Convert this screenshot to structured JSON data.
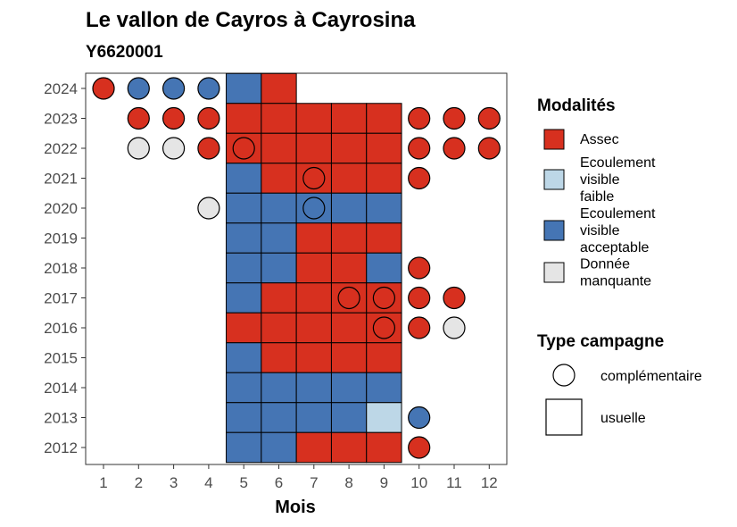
{
  "title": "Le vallon de Cayros à Cayrosina",
  "subtitle": "Y6620001",
  "colors": {
    "assec": "#d7301f",
    "faible": "#bdd7e7",
    "acceptable": "#4575b4",
    "manquante": "#e5e5e5"
  },
  "legend": {
    "modalites_title": "Modalités",
    "modalites": [
      {
        "key": "assec",
        "lines": [
          "Assec"
        ]
      },
      {
        "key": "faible",
        "lines": [
          "Ecoulement",
          "visible",
          "faible"
        ]
      },
      {
        "key": "acceptable",
        "lines": [
          "Ecoulement",
          "visible",
          "acceptable"
        ]
      },
      {
        "key": "manquante",
        "lines": [
          "Donnée",
          "manquante"
        ]
      }
    ],
    "campagne_title": "Type campagne",
    "campagnes": [
      {
        "shape": "circle",
        "label": "complémentaire"
      },
      {
        "shape": "square",
        "label": "usuelle"
      }
    ]
  },
  "chart_data": {
    "type": "heatmap",
    "title": "Le vallon de Cayros à Cayrosina",
    "subtitle": "Y6620001",
    "xlabel": "Mois",
    "ylabel": "",
    "x_ticks": [
      1,
      2,
      3,
      4,
      5,
      6,
      7,
      8,
      9,
      10,
      11,
      12
    ],
    "y_ticks": [
      2012,
      2013,
      2014,
      2015,
      2016,
      2017,
      2018,
      2019,
      2020,
      2021,
      2022,
      2023,
      2024
    ],
    "usuelle": [
      {
        "year": 2024,
        "values": {
          "5": "acceptable",
          "6": "assec"
        }
      },
      {
        "year": 2023,
        "values": {
          "5": "assec",
          "6": "assec",
          "7": "assec",
          "8": "assec",
          "9": "assec"
        }
      },
      {
        "year": 2022,
        "values": {
          "5": "assec",
          "6": "assec",
          "7": "assec",
          "8": "assec",
          "9": "assec"
        }
      },
      {
        "year": 2021,
        "values": {
          "5": "acceptable",
          "6": "assec",
          "7": "assec",
          "8": "assec",
          "9": "assec"
        }
      },
      {
        "year": 2020,
        "values": {
          "5": "acceptable",
          "6": "acceptable",
          "7": "acceptable",
          "8": "acceptable",
          "9": "acceptable"
        }
      },
      {
        "year": 2019,
        "values": {
          "5": "acceptable",
          "6": "acceptable",
          "7": "assec",
          "8": "assec",
          "9": "assec"
        }
      },
      {
        "year": 2018,
        "values": {
          "5": "acceptable",
          "6": "acceptable",
          "7": "assec",
          "8": "assec",
          "9": "acceptable"
        }
      },
      {
        "year": 2017,
        "values": {
          "5": "acceptable",
          "6": "assec",
          "7": "assec",
          "8": "assec",
          "9": "assec"
        }
      },
      {
        "year": 2016,
        "values": {
          "5": "assec",
          "6": "assec",
          "7": "assec",
          "8": "assec",
          "9": "assec"
        }
      },
      {
        "year": 2015,
        "values": {
          "5": "acceptable",
          "6": "assec",
          "7": "assec",
          "8": "assec",
          "9": "assec"
        }
      },
      {
        "year": 2014,
        "values": {
          "5": "acceptable",
          "6": "acceptable",
          "7": "acceptable",
          "8": "acceptable",
          "9": "acceptable"
        }
      },
      {
        "year": 2013,
        "values": {
          "5": "acceptable",
          "6": "acceptable",
          "7": "acceptable",
          "8": "acceptable",
          "9": "faible"
        }
      },
      {
        "year": 2012,
        "values": {
          "5": "acceptable",
          "6": "acceptable",
          "7": "assec",
          "8": "assec",
          "9": "assec"
        }
      }
    ],
    "complementaire": [
      {
        "year": 2024,
        "month": 1,
        "value": "assec"
      },
      {
        "year": 2024,
        "month": 2,
        "value": "acceptable"
      },
      {
        "year": 2024,
        "month": 3,
        "value": "acceptable"
      },
      {
        "year": 2024,
        "month": 4,
        "value": "acceptable"
      },
      {
        "year": 2023,
        "month": 2,
        "value": "assec"
      },
      {
        "year": 2023,
        "month": 3,
        "value": "assec"
      },
      {
        "year": 2023,
        "month": 4,
        "value": "assec"
      },
      {
        "year": 2023,
        "month": 10,
        "value": "assec"
      },
      {
        "year": 2023,
        "month": 11,
        "value": "assec"
      },
      {
        "year": 2023,
        "month": 12,
        "value": "assec"
      },
      {
        "year": 2022,
        "month": 2,
        "value": "manquante"
      },
      {
        "year": 2022,
        "month": 3,
        "value": "manquante"
      },
      {
        "year": 2022,
        "month": 4,
        "value": "assec"
      },
      {
        "year": 2022,
        "month": 5,
        "value": "assec"
      },
      {
        "year": 2022,
        "month": 10,
        "value": "assec"
      },
      {
        "year": 2022,
        "month": 11,
        "value": "assec"
      },
      {
        "year": 2022,
        "month": 12,
        "value": "assec"
      },
      {
        "year": 2021,
        "month": 7,
        "value": "assec"
      },
      {
        "year": 2021,
        "month": 10,
        "value": "assec"
      },
      {
        "year": 2020,
        "month": 4,
        "value": "manquante"
      },
      {
        "year": 2020,
        "month": 7,
        "value": "acceptable"
      },
      {
        "year": 2018,
        "month": 10,
        "value": "assec"
      },
      {
        "year": 2017,
        "month": 8,
        "value": "assec"
      },
      {
        "year": 2017,
        "month": 9,
        "value": "assec"
      },
      {
        "year": 2017,
        "month": 10,
        "value": "assec"
      },
      {
        "year": 2017,
        "month": 11,
        "value": "assec"
      },
      {
        "year": 2016,
        "month": 9,
        "value": "assec"
      },
      {
        "year": 2016,
        "month": 10,
        "value": "assec"
      },
      {
        "year": 2016,
        "month": 11,
        "value": "manquante"
      },
      {
        "year": 2013,
        "month": 10,
        "value": "acceptable"
      },
      {
        "year": 2012,
        "month": 10,
        "value": "assec"
      }
    ]
  }
}
